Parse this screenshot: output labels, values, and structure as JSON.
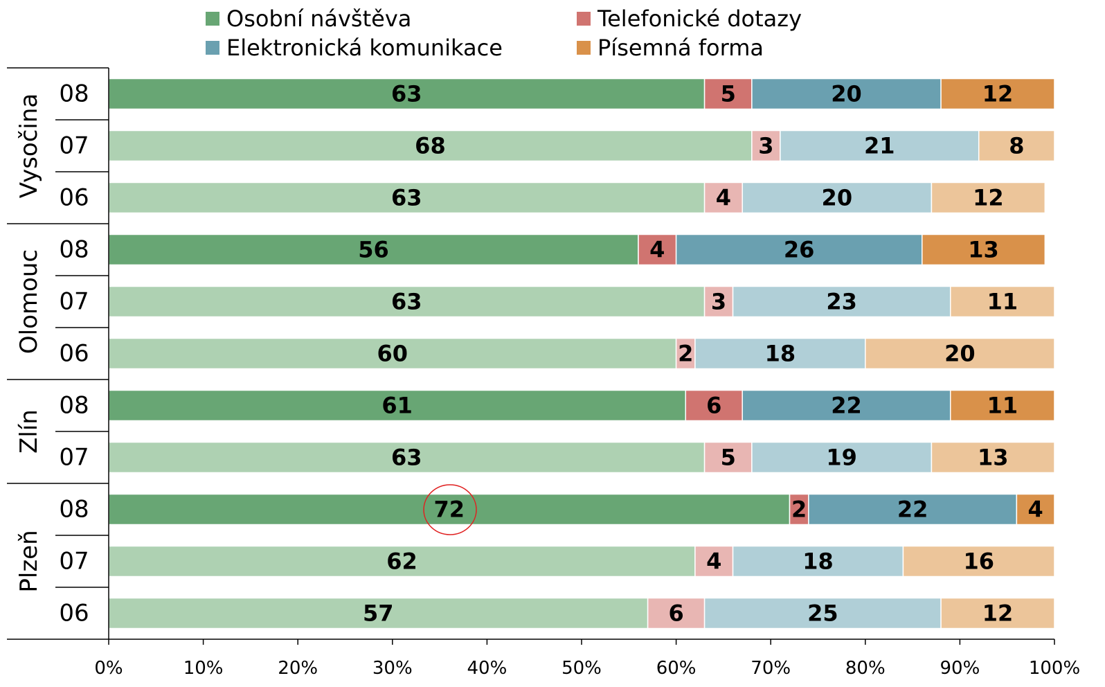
{
  "chart_data": {
    "type": "stacked_barh",
    "groups": [
      {
        "name": "Vysočina",
        "categories": [
          "08",
          "07",
          "06"
        ]
      },
      {
        "name": "Olomouc",
        "categories": [
          "08",
          "07",
          "06"
        ]
      },
      {
        "name": "Zlín",
        "categories": [
          "08",
          "07"
        ]
      },
      {
        "name": "Plzeň",
        "categories": [
          "08",
          "07",
          "06"
        ]
      }
    ],
    "series": [
      {
        "name": "Osobní návštěva",
        "color": "#68a674",
        "colors": [
          "#68a674",
          "#aed1b2",
          "#aed1b2",
          "#68a674",
          "#aed1b2",
          "#aed1b2",
          "#68a674",
          "#aed1b2",
          "#68a674",
          "#aed1b2",
          "#aed1b2"
        ],
        "values": [
          63,
          68,
          63,
          56,
          63,
          60,
          61,
          63,
          72,
          62,
          57
        ]
      },
      {
        "name": "Telefonické dotazy",
        "color": "#d07470",
        "colors": [
          "#d07470",
          "#e8b6b3",
          "#e8b6b3",
          "#d07470",
          "#e8b6b3",
          "#e8b6b3",
          "#d07470",
          "#e8b6b3",
          "#d07470",
          "#e8b6b3",
          "#e8b6b3"
        ],
        "values": [
          5,
          3,
          4,
          4,
          3,
          2,
          6,
          5,
          2,
          4,
          6
        ]
      },
      {
        "name": "Elektronická komunikace",
        "color": "#6aa0b0",
        "colors": [
          "#6aa0b0",
          "#b0cfd7",
          "#b0cfd7",
          "#6aa0b0",
          "#b0cfd7",
          "#b0cfd7",
          "#6aa0b0",
          "#b0cfd7",
          "#6aa0b0",
          "#b0cfd7",
          "#b0cfd7"
        ],
        "values": [
          20,
          21,
          20,
          26,
          23,
          18,
          22,
          19,
          22,
          18,
          25
        ]
      },
      {
        "name": "Písemná forma",
        "color": "#d9914a",
        "colors": [
          "#d9914a",
          "#ecc59a",
          "#ecc59a",
          "#d9914a",
          "#ecc59a",
          "#ecc59a",
          "#d9914a",
          "#ecc59a",
          "#d9914a",
          "#ecc59a",
          "#ecc59a"
        ],
        "values": [
          12,
          8,
          12,
          13,
          11,
          20,
          11,
          13,
          4,
          16,
          12
        ]
      }
    ],
    "xlim": [
      0,
      100
    ],
    "xticks": [
      {
        "value": 0,
        "label": "0%"
      },
      {
        "value": 10,
        "label": "10%"
      },
      {
        "value": 20,
        "label": "20%"
      },
      {
        "value": 30,
        "label": "30%"
      },
      {
        "value": 40,
        "label": "40%"
      },
      {
        "value": 50,
        "label": "50%"
      },
      {
        "value": 60,
        "label": "60%"
      },
      {
        "value": 70,
        "label": "70%"
      },
      {
        "value": 80,
        "label": "80%"
      },
      {
        "value": 90,
        "label": "90%"
      },
      {
        "value": 100,
        "label": "100%"
      }
    ]
  }
}
